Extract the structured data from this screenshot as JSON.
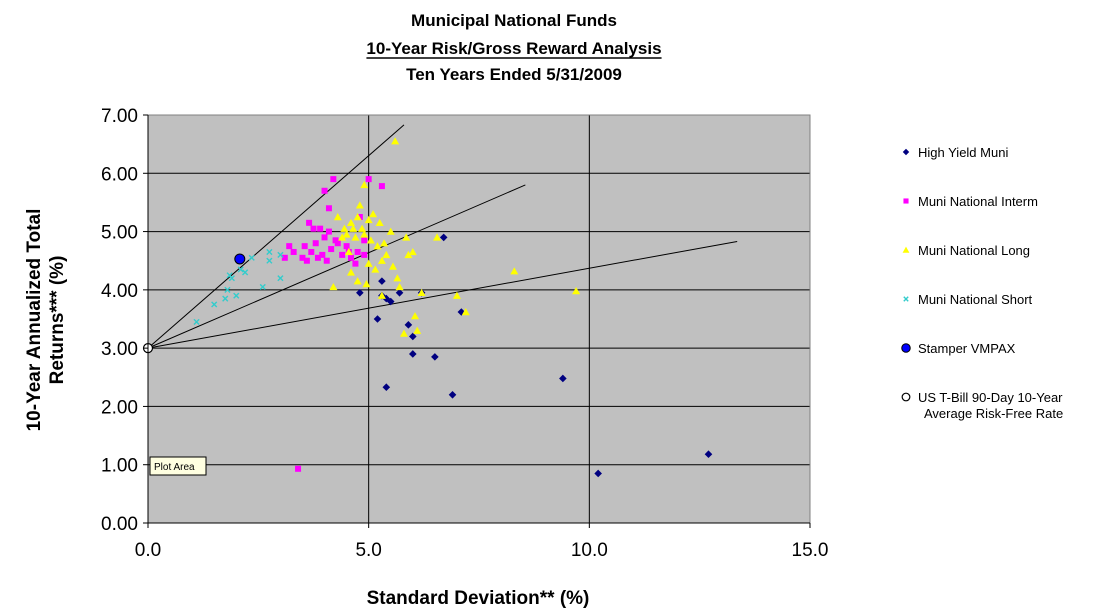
{
  "chart_data": {
    "type": "scatter",
    "title": [
      "Municipal National Funds",
      "10-Year Risk/Gross Reward Analysis",
      "Ten Years Ended 5/31/2009"
    ],
    "xlabel": "Standard Deviation**  (%)",
    "ylabel": [
      "10-Year Annualized Total",
      "Returns***   (%)"
    ],
    "xlim": [
      0,
      15
    ],
    "ylim": [
      0,
      7
    ],
    "xticks": [
      "0.0",
      "5.0",
      "10.0",
      "15.0"
    ],
    "yticks": [
      "0.00",
      "1.00",
      "2.00",
      "3.00",
      "4.00",
      "5.00",
      "6.00",
      "7.00"
    ],
    "grid": "major gridlines at x = 5, 10; y every 1.00",
    "plot_background": "#c0c0c0",
    "legend_position": "right",
    "tooltip": "Plot Area",
    "series": [
      {
        "name": "High Yield Muni",
        "marker": "diamond",
        "color": "#000080",
        "points": [
          [
            4.8,
            3.95
          ],
          [
            5.2,
            3.5
          ],
          [
            5.3,
            3.9
          ],
          [
            5.3,
            4.15
          ],
          [
            5.4,
            3.85
          ],
          [
            5.5,
            3.8
          ],
          [
            5.7,
            3.95
          ],
          [
            5.9,
            3.4
          ],
          [
            6.0,
            3.2
          ],
          [
            6.0,
            2.9
          ],
          [
            6.2,
            3.95
          ],
          [
            6.5,
            2.85
          ],
          [
            6.7,
            4.9
          ],
          [
            6.9,
            2.2
          ],
          [
            7.1,
            3.62
          ],
          [
            5.4,
            2.33
          ],
          [
            9.4,
            2.48
          ],
          [
            10.2,
            0.85
          ],
          [
            12.7,
            1.18
          ]
        ]
      },
      {
        "name": "Muni National Interm",
        "marker": "square",
        "color": "#ff00ff",
        "points": [
          [
            3.4,
            0.93
          ],
          [
            3.1,
            4.55
          ],
          [
            3.2,
            4.75
          ],
          [
            3.3,
            4.65
          ],
          [
            3.5,
            4.55
          ],
          [
            3.55,
            4.75
          ],
          [
            3.6,
            4.5
          ],
          [
            3.65,
            5.15
          ],
          [
            3.7,
            4.65
          ],
          [
            3.75,
            5.05
          ],
          [
            3.8,
            4.8
          ],
          [
            3.85,
            4.55
          ],
          [
            3.9,
            5.05
          ],
          [
            3.95,
            4.6
          ],
          [
            4.0,
            4.9
          ],
          [
            4.0,
            5.7
          ],
          [
            4.05,
            4.5
          ],
          [
            4.1,
            5.4
          ],
          [
            4.1,
            5.0
          ],
          [
            4.15,
            4.7
          ],
          [
            4.2,
            5.9
          ],
          [
            4.25,
            4.85
          ],
          [
            4.3,
            4.8
          ],
          [
            4.4,
            4.6
          ],
          [
            4.5,
            4.75
          ],
          [
            4.55,
            4.65
          ],
          [
            4.6,
            4.55
          ],
          [
            4.7,
            4.45
          ],
          [
            4.75,
            4.65
          ],
          [
            4.8,
            5.25
          ],
          [
            4.9,
            4.6
          ],
          [
            4.9,
            4.85
          ],
          [
            5.0,
            5.9
          ],
          [
            5.3,
            5.78
          ]
        ]
      },
      {
        "name": "Muni National Long",
        "marker": "triangle",
        "color": "#ffff00",
        "points": [
          [
            4.2,
            4.05
          ],
          [
            4.3,
            5.25
          ],
          [
            4.4,
            4.9
          ],
          [
            4.45,
            5.05
          ],
          [
            4.5,
            4.95
          ],
          [
            4.55,
            4.65
          ],
          [
            4.6,
            5.15
          ],
          [
            4.6,
            4.3
          ],
          [
            4.65,
            5.05
          ],
          [
            4.7,
            4.9
          ],
          [
            4.75,
            5.25
          ],
          [
            4.75,
            4.15
          ],
          [
            4.8,
            5.45
          ],
          [
            4.85,
            5.05
          ],
          [
            4.9,
            5.8
          ],
          [
            4.9,
            4.95
          ],
          [
            4.95,
            4.1
          ],
          [
            5.0,
            5.2
          ],
          [
            5.0,
            4.45
          ],
          [
            5.05,
            4.85
          ],
          [
            5.1,
            5.3
          ],
          [
            5.15,
            4.35
          ],
          [
            5.2,
            4.75
          ],
          [
            5.25,
            5.15
          ],
          [
            5.3,
            4.5
          ],
          [
            5.3,
            3.9
          ],
          [
            5.35,
            4.8
          ],
          [
            5.4,
            4.6
          ],
          [
            5.5,
            5.0
          ],
          [
            5.55,
            4.4
          ],
          [
            5.6,
            6.55
          ],
          [
            5.65,
            4.2
          ],
          [
            5.7,
            4.05
          ],
          [
            5.8,
            3.25
          ],
          [
            5.85,
            4.9
          ],
          [
            5.9,
            4.6
          ],
          [
            6.0,
            4.65
          ],
          [
            6.05,
            3.55
          ],
          [
            6.1,
            3.3
          ],
          [
            6.2,
            3.95
          ],
          [
            6.55,
            4.9
          ],
          [
            7.0,
            3.9
          ],
          [
            7.2,
            3.62
          ],
          [
            8.3,
            4.32
          ],
          [
            9.7,
            3.98
          ]
        ]
      },
      {
        "name": "Muni National Short",
        "marker": "x",
        "color": "#33cccc",
        "points": [
          [
            1.1,
            3.45
          ],
          [
            1.5,
            3.75
          ],
          [
            1.75,
            3.85
          ],
          [
            1.8,
            4.0
          ],
          [
            1.85,
            4.25
          ],
          [
            1.9,
            4.2
          ],
          [
            2.0,
            3.9
          ],
          [
            2.1,
            4.35
          ],
          [
            2.2,
            4.3
          ],
          [
            2.35,
            4.55
          ],
          [
            2.6,
            4.05
          ],
          [
            2.75,
            4.5
          ],
          [
            2.75,
            4.65
          ],
          [
            3.0,
            4.6
          ],
          [
            3.0,
            4.2
          ]
        ]
      },
      {
        "name": "Stamper VMPAX",
        "marker": "circle",
        "color": "#0000ff",
        "points": [
          [
            2.08,
            4.53
          ]
        ]
      },
      {
        "name": "US T-Bill 90-Day 10-Year Average Risk-Free Rate",
        "marker": "open-circle",
        "color": "#000000",
        "points": [
          [
            0,
            3.0
          ]
        ]
      }
    ],
    "lines": [
      {
        "from": [
          0,
          3.0
        ],
        "to": [
          5.8,
          6.83
        ]
      },
      {
        "from": [
          0,
          3.0
        ],
        "to": [
          8.55,
          5.8
        ]
      },
      {
        "from": [
          0,
          3.0
        ],
        "to": [
          13.35,
          4.83
        ]
      }
    ],
    "legend": [
      {
        "label": [
          "High Yield Muni"
        ]
      },
      {
        "label": [
          "Muni National Interm"
        ]
      },
      {
        "label": [
          "Muni National Long"
        ]
      },
      {
        "label": [
          "Muni National Short"
        ]
      },
      {
        "label": [
          "Stamper VMPAX"
        ]
      },
      {
        "label": [
          "US T-Bill 90-Day 10-Year",
          "Average Risk-Free Rate"
        ]
      }
    ]
  }
}
